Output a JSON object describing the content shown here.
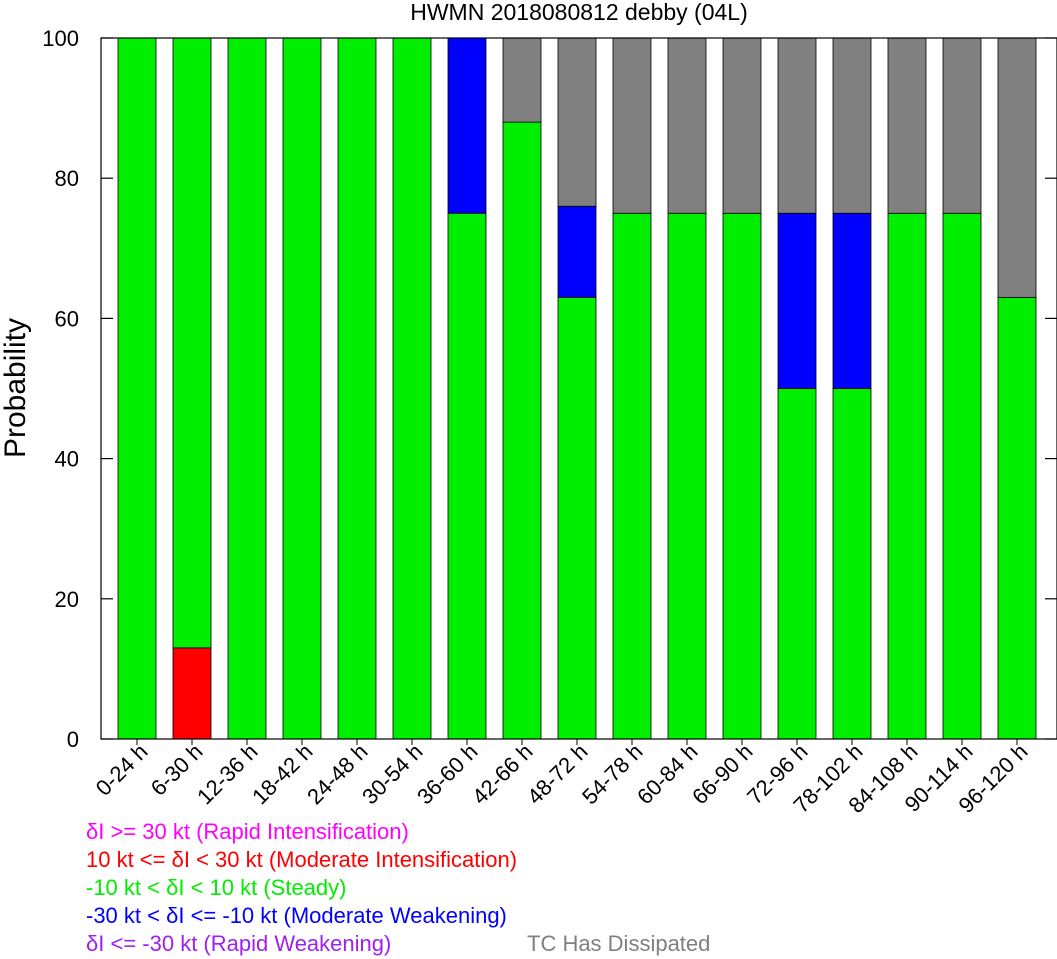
{
  "chart_data": {
    "type": "bar",
    "stacked": true,
    "title": "HWMN 2018080812 debby (04L)",
    "ylabel": "Probability",
    "ylim": [
      0,
      100
    ],
    "yticks": [
      "0",
      "20",
      "40",
      "60",
      "80",
      "100"
    ],
    "categories": [
      "0-24 h",
      "6-30 h",
      "12-36 h",
      "18-42 h",
      "24-48 h",
      "30-54 h",
      "36-60 h",
      "42-66 h",
      "48-72 h",
      "54-78 h",
      "60-84 h",
      "66-90 h",
      "72-96 h",
      "78-102 h",
      "84-108 h",
      "90-114 h",
      "96-120 h"
    ],
    "series": [
      {
        "name": "δI <= -30 kt (Rapid Weakening)",
        "color": "#a020f0",
        "values": [
          0,
          0,
          0,
          0,
          0,
          0,
          0,
          0,
          0,
          0,
          0,
          0,
          0,
          0,
          0,
          0,
          0
        ]
      },
      {
        "name": "10 kt <= δI < 30 kt (Moderate Intensification)",
        "color": "#ff0000",
        "values": [
          0,
          13,
          0,
          0,
          0,
          0,
          0,
          0,
          0,
          0,
          0,
          0,
          0,
          0,
          0,
          0,
          0
        ]
      },
      {
        "name": "-10 kt < δI < 10 kt (Steady)",
        "color": "#00ee00",
        "values": [
          100,
          87,
          100,
          100,
          100,
          100,
          75,
          88,
          63,
          75,
          75,
          75,
          50,
          50,
          75,
          75,
          63
        ]
      },
      {
        "name": "-30 kt < δI <= -10 kt (Moderate Weakening)",
        "color": "#0000ff",
        "values": [
          0,
          0,
          0,
          0,
          0,
          0,
          25,
          0,
          13,
          0,
          0,
          0,
          25,
          25,
          0,
          0,
          0
        ]
      },
      {
        "name": "δI >= 30 kt (Rapid Intensification)",
        "color": "#ff00ff",
        "values": [
          0,
          0,
          0,
          0,
          0,
          0,
          0,
          0,
          0,
          0,
          0,
          0,
          0,
          0,
          0,
          0,
          0
        ]
      },
      {
        "name": "TC Has Dissipated",
        "color": "#808080",
        "values": [
          0,
          0,
          0,
          0,
          0,
          0,
          0,
          12,
          24,
          25,
          25,
          25,
          25,
          25,
          25,
          25,
          37
        ]
      }
    ],
    "legend": [
      {
        "text": "δI >= 30 kt (Rapid Intensification)",
        "color": "#ff00ff"
      },
      {
        "text": "10 kt <= δI < 30 kt (Moderate Intensification)",
        "color": "#ff0000"
      },
      {
        "text": "-10 kt < δI < 10 kt (Steady)",
        "color": "#00ee00"
      },
      {
        "text": "-30 kt < δI <= -10 kt (Moderate Weakening)",
        "color": "#0000ff"
      },
      {
        "text": "δI <= -30 kt (Rapid Weakening)",
        "color": "#a020f0"
      }
    ],
    "legend_extra": {
      "text": "TC Has Dissipated",
      "color": "#808080"
    },
    "legend_position": "bottom",
    "grid": false
  }
}
